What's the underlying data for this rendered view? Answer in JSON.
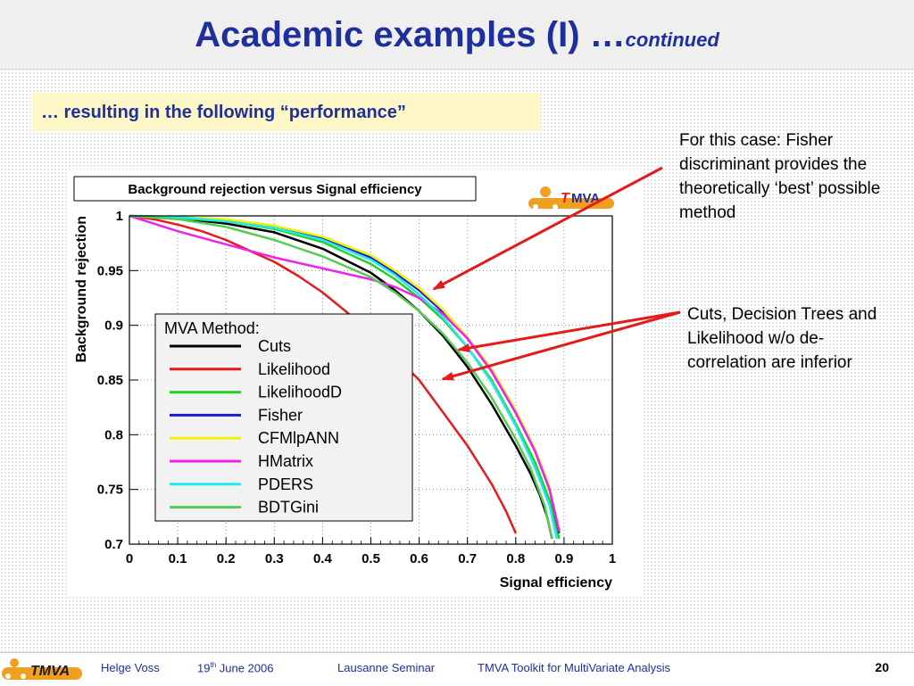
{
  "slide": {
    "title_main": "Academic examples (I) …",
    "title_suffix": "continued",
    "subtitle": "… resulting in the following “performance”",
    "note_fisher": "For this case: Fisher discriminant provides the theoretically ‘best’ possible method",
    "note_inferior": "Cuts, Decision Trees and Likelihood w/o de-correlation are inferior"
  },
  "footer": {
    "logo_text": "TMVA",
    "author": "Helge Voss",
    "date_day": "19",
    "date_sup": "th",
    "date_rest": " June 2006",
    "event": "Lausanne Seminar",
    "toolkit": "TMVA Toolkit for MultiVariate Analysis",
    "page": "20"
  },
  "chart_logo": {
    "t": "T",
    "rest": "MVA"
  },
  "colors": {
    "title": "#1f2f9c",
    "arrow": "#e51a1a",
    "logo_orange": "#f0a020"
  },
  "chart_data": {
    "type": "line",
    "title": "Background rejection versus Signal efficiency",
    "xlabel": "Signal efficiency",
    "ylabel": "Background rejection",
    "xlim": [
      0,
      1
    ],
    "ylim": [
      0.7,
      1
    ],
    "xticks": [
      "0",
      "0.1",
      "0.2",
      "0.3",
      "0.4",
      "0.5",
      "0.6",
      "0.7",
      "0.8",
      "0.9",
      "1"
    ],
    "yticks": [
      "0.7",
      "0.75",
      "0.8",
      "0.85",
      "0.9",
      "0.95",
      "1"
    ],
    "grid": true,
    "legend_title": "MVA Method:",
    "legend_position": "lower-left",
    "series": [
      {
        "name": "Cuts",
        "color": "#000000",
        "x": [
          0,
          0.1,
          0.2,
          0.3,
          0.4,
          0.5,
          0.55,
          0.6,
          0.65,
          0.7,
          0.75,
          0.8,
          0.83,
          0.85,
          0.865,
          0.875
        ],
        "y": [
          1,
          0.998,
          0.993,
          0.985,
          0.97,
          0.948,
          0.932,
          0.913,
          0.89,
          0.862,
          0.828,
          0.79,
          0.765,
          0.745,
          0.725,
          0.705
        ]
      },
      {
        "name": "Likelihood",
        "color": "#e51a1a",
        "x": [
          0,
          0.05,
          0.1,
          0.15,
          0.2,
          0.25,
          0.3,
          0.35,
          0.4,
          0.45,
          0.5,
          0.55,
          0.6,
          0.65,
          0.7,
          0.75,
          0.78,
          0.8
        ],
        "y": [
          1,
          0.997,
          0.992,
          0.986,
          0.978,
          0.968,
          0.958,
          0.945,
          0.93,
          0.912,
          0.893,
          0.872,
          0.85,
          0.82,
          0.79,
          0.755,
          0.73,
          0.71
        ]
      },
      {
        "name": "LikelihoodD",
        "color": "#22d422",
        "x": [
          0,
          0.1,
          0.2,
          0.3,
          0.4,
          0.5,
          0.55,
          0.6,
          0.65,
          0.7,
          0.75,
          0.8,
          0.84,
          0.87,
          0.89
        ],
        "y": [
          1,
          0.998,
          0.995,
          0.988,
          0.976,
          0.956,
          0.942,
          0.925,
          0.905,
          0.88,
          0.85,
          0.81,
          0.775,
          0.74,
          0.705
        ]
      },
      {
        "name": "Fisher",
        "color": "#1a1ad0",
        "x": [
          0,
          0.1,
          0.2,
          0.3,
          0.4,
          0.5,
          0.55,
          0.6,
          0.65,
          0.7,
          0.75,
          0.8,
          0.84,
          0.87,
          0.89
        ],
        "y": [
          1,
          0.999,
          0.996,
          0.99,
          0.98,
          0.962,
          0.948,
          0.932,
          0.912,
          0.888,
          0.858,
          0.82,
          0.785,
          0.75,
          0.71
        ]
      },
      {
        "name": "CFMlpANN",
        "color": "#f2f200",
        "x": [
          0,
          0.1,
          0.2,
          0.3,
          0.4,
          0.5,
          0.55,
          0.6,
          0.65,
          0.7,
          0.75,
          0.8,
          0.84,
          0.87,
          0.89
        ],
        "y": [
          1,
          0.999,
          0.997,
          0.991,
          0.981,
          0.964,
          0.95,
          0.934,
          0.914,
          0.889,
          0.86,
          0.822,
          0.787,
          0.752,
          0.712
        ]
      },
      {
        "name": "HMatrix",
        "color": "#ee22ee",
        "x": [
          0,
          0.05,
          0.1,
          0.2,
          0.3,
          0.4,
          0.5,
          0.55,
          0.6,
          0.65,
          0.7,
          0.75,
          0.8,
          0.84,
          0.87,
          0.89
        ],
        "y": [
          1,
          0.993,
          0.986,
          0.974,
          0.962,
          0.952,
          0.942,
          0.935,
          0.925,
          0.91,
          0.888,
          0.858,
          0.82,
          0.785,
          0.75,
          0.712
        ]
      },
      {
        "name": "PDERS",
        "color": "#22e8f0",
        "x": [
          0,
          0.1,
          0.2,
          0.3,
          0.4,
          0.5,
          0.55,
          0.6,
          0.65,
          0.7,
          0.75,
          0.8,
          0.84,
          0.87,
          0.885
        ],
        "y": [
          1,
          0.999,
          0.995,
          0.989,
          0.978,
          0.96,
          0.946,
          0.928,
          0.907,
          0.88,
          0.848,
          0.808,
          0.77,
          0.735,
          0.705
        ]
      },
      {
        "name": "BDTGini",
        "color": "#55cc55",
        "x": [
          0,
          0.1,
          0.2,
          0.3,
          0.4,
          0.5,
          0.55,
          0.6,
          0.65,
          0.7,
          0.75,
          0.8,
          0.83,
          0.86,
          0.875
        ],
        "y": [
          1,
          0.997,
          0.99,
          0.978,
          0.963,
          0.944,
          0.93,
          0.913,
          0.892,
          0.866,
          0.834,
          0.796,
          0.77,
          0.735,
          0.705
        ]
      }
    ]
  }
}
